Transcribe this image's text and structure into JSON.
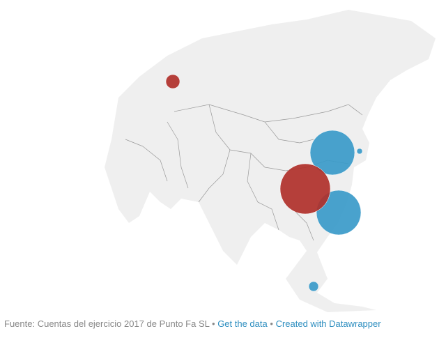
{
  "footer": {
    "source": "Fuente: Cuentas del ejercicio 2017 de Punto Fa SL",
    "separator": "•",
    "get_data": "Get the data",
    "created_with": "Created with Datawrapper"
  }
}
